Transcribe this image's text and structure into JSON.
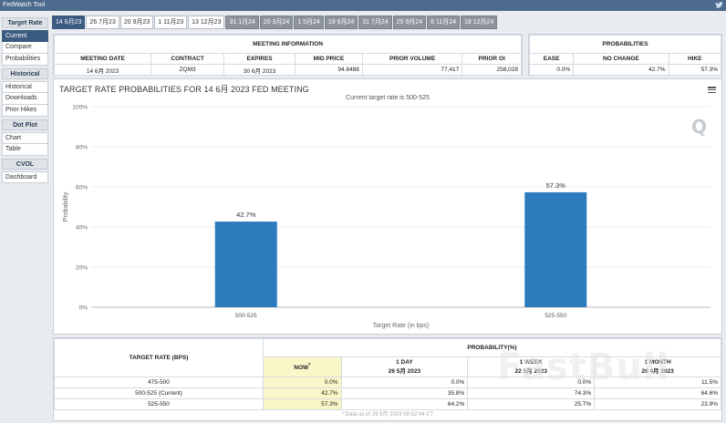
{
  "app": {
    "title": "FedWatch Tool"
  },
  "sidebar": {
    "sections": [
      {
        "header": "Target Rate",
        "items": [
          "Current",
          "Compare",
          "Probabilities"
        ],
        "active": 0
      },
      {
        "header": "Historical",
        "items": [
          "Historical",
          "Downloads",
          "Prior Hikes"
        ],
        "active": -1
      },
      {
        "header": "Dot Plot",
        "items": [
          "Chart",
          "Table"
        ],
        "active": -1
      },
      {
        "header": "CVOL",
        "items": [
          "Dashboard"
        ],
        "active": -1
      }
    ]
  },
  "tabs": [
    {
      "label": "14 6月23",
      "style": "active"
    },
    {
      "label": "26 7月23",
      "style": "normal"
    },
    {
      "label": "20 9月23",
      "style": "normal"
    },
    {
      "label": "1 11月23",
      "style": "normal"
    },
    {
      "label": "13 12月23",
      "style": "normal"
    },
    {
      "label": "31 1月24",
      "style": "dark"
    },
    {
      "label": "20 3月24",
      "style": "dark"
    },
    {
      "label": "1 5月24",
      "style": "dark"
    },
    {
      "label": "19 6月24",
      "style": "dark"
    },
    {
      "label": "31 7月24",
      "style": "dark"
    },
    {
      "label": "25 9月24",
      "style": "dark"
    },
    {
      "label": "6 11月24",
      "style": "dark"
    },
    {
      "label": "18 12月24",
      "style": "dark"
    }
  ],
  "meeting_info": {
    "title": "MEETING INFORMATION",
    "headers": [
      "MEETING DATE",
      "CONTRACT",
      "EXPIRES",
      "MID PRICE",
      "PRIOR VOLUME",
      "PRIOR OI"
    ],
    "values": [
      "14 6月 2023",
      "ZQM3",
      "30 6月 2023",
      "94.8488",
      "77,417",
      "258,028"
    ]
  },
  "probabilities": {
    "title": "PROBABILITIES",
    "headers": [
      "EASE",
      "NO CHANGE",
      "HIKE"
    ],
    "values": [
      "0.0%",
      "42.7%",
      "57.3%"
    ]
  },
  "chart": {
    "title": "TARGET RATE PROBABILITIES FOR 14 6月 2023 FED MEETING",
    "subtitle": "Current target rate is 500-525",
    "logo": "Q"
  },
  "chart_data": {
    "type": "bar",
    "categories": [
      "500-525",
      "525-550"
    ],
    "values": [
      42.7,
      57.3
    ],
    "data_labels": [
      "42.7%",
      "57.3%"
    ],
    "title": "TARGET RATE PROBABILITIES FOR 14 6月 2023 FED MEETING",
    "subtitle": "Current target rate is 500-525",
    "xlabel": "Target Rate (in bps)",
    "ylabel": "Probability",
    "ylim": [
      0,
      100
    ],
    "yticks": [
      "0%",
      "20%",
      "40%",
      "60%",
      "80%",
      "100%"
    ],
    "ytick_values": [
      0,
      20,
      40,
      60,
      80,
      100
    ],
    "grid": true,
    "bar_color": "#2b7bbd"
  },
  "bottom_table": {
    "col1_header": "TARGET RATE (BPS)",
    "group_header": "PROBABILITY(%)",
    "sub_headers": [
      {
        "line1": "NOW",
        "line2": "",
        "mark": "*"
      },
      {
        "line1": "1 DAY",
        "line2": "26 5月 2023",
        "mark": ""
      },
      {
        "line1": "1 WEEK",
        "line2": "22 5月 2023",
        "mark": ""
      },
      {
        "line1": "1 MONTH",
        "line2": "28 4月 2023",
        "mark": ""
      }
    ],
    "rows": [
      {
        "rate": "475-500",
        "values": [
          "0.0%",
          "0.0%",
          "0.0%",
          "11.5%"
        ]
      },
      {
        "rate": "500-525 (Current)",
        "values": [
          "42.7%",
          "35.8%",
          "74.3%",
          "64.6%"
        ]
      },
      {
        "rate": "525-550",
        "values": [
          "57.3%",
          "64.2%",
          "25.7%",
          "23.9%"
        ]
      }
    ],
    "footnote": "* Data as of 29 5月 2023 09:52:44 CT"
  },
  "watermark": "FastBull",
  "colors": {
    "accent": "#3b5b82",
    "bar": "#2b7bbd",
    "highlight": "#fbf6c7"
  }
}
